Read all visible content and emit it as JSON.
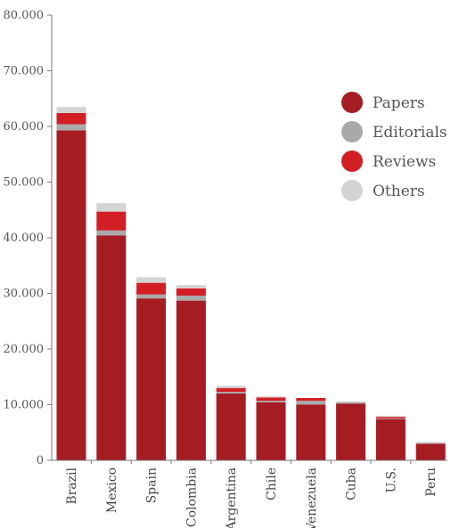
{
  "chart_data": {
    "type": "bar",
    "stacked": true,
    "title": "",
    "xlabel": "",
    "ylabel": "",
    "ylim": [
      0,
      80000
    ],
    "yticks": [
      0,
      10000,
      20000,
      30000,
      40000,
      50000,
      60000,
      70000,
      80000
    ],
    "ytick_labels": [
      "0",
      "10.000",
      "20.000",
      "30.000",
      "40.000",
      "50.000",
      "60.000",
      "70.000",
      "80.000"
    ],
    "grid": false,
    "legend_position": "right",
    "categories": [
      "Brazil",
      "Mexico",
      "Spain",
      "Colombia",
      "Argentina",
      "Chile",
      "Venezuela",
      "Cuba",
      "U.S.",
      "Peru"
    ],
    "series": [
      {
        "name": "Papers",
        "color": "#a51c22",
        "values": [
          59300,
          40400,
          29100,
          28700,
          12000,
          10400,
          10000,
          10200,
          7400,
          3000
        ]
      },
      {
        "name": "Editorials",
        "color": "#a9a9a9",
        "values": [
          1100,
          900,
          700,
          900,
          300,
          300,
          700,
          200,
          100,
          100
        ]
      },
      {
        "name": "Reviews",
        "color": "#d21f26",
        "values": [
          2000,
          3400,
          2100,
          1300,
          700,
          600,
          500,
          0,
          300,
          0
        ]
      },
      {
        "name": "Others",
        "color": "#d4d4d4",
        "values": [
          1100,
          1500,
          1000,
          600,
          400,
          200,
          0,
          200,
          200,
          200
        ]
      }
    ]
  }
}
